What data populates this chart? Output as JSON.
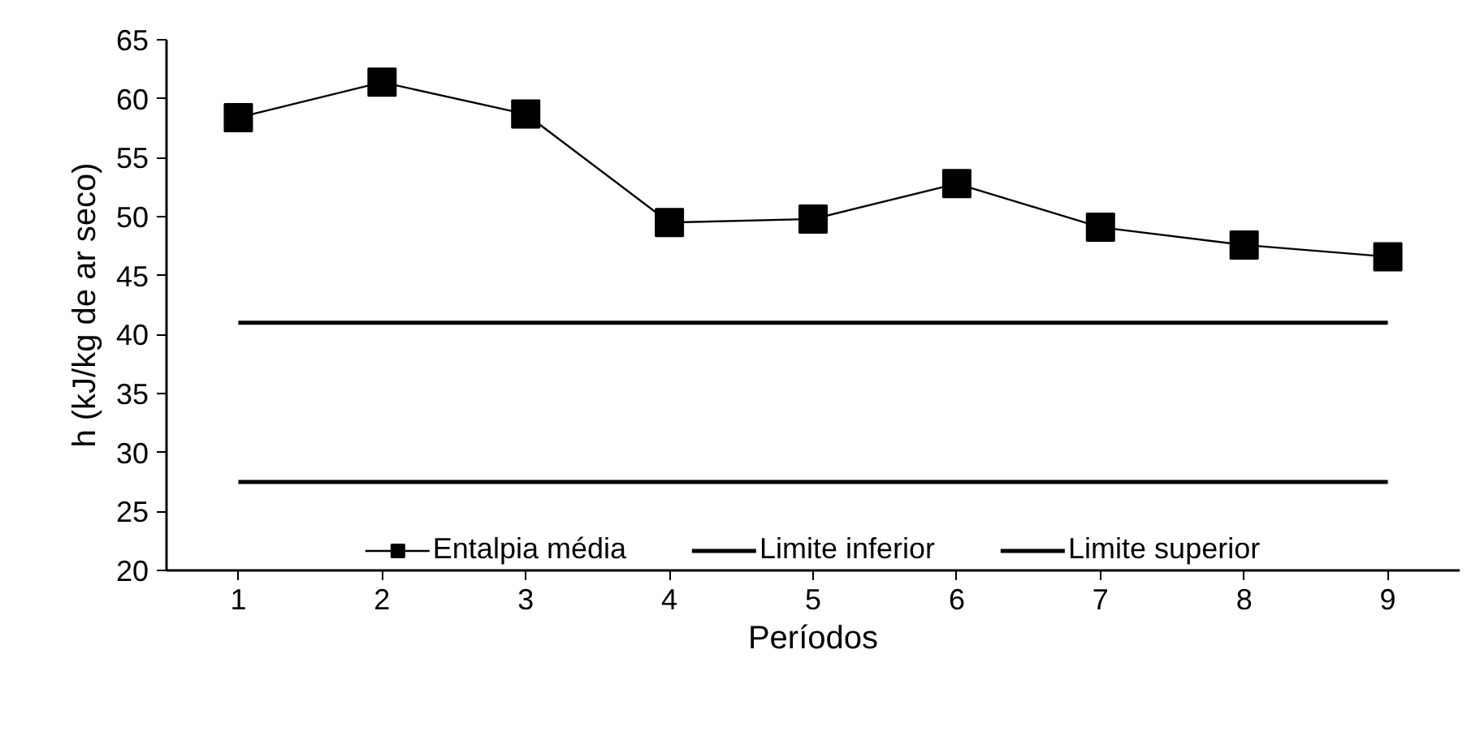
{
  "chart_data": {
    "type": "line",
    "xlabel": "Períodos",
    "ylabel": "h (kJ/kg de ar seco)",
    "x": [
      1,
      2,
      3,
      4,
      5,
      6,
      7,
      8,
      9
    ],
    "xlim": [
      0.5,
      9.5
    ],
    "xticks": [
      1,
      2,
      3,
      4,
      5,
      6,
      7,
      8,
      9
    ],
    "ylim": [
      20,
      65
    ],
    "yticks": [
      20,
      25,
      30,
      35,
      40,
      45,
      50,
      55,
      60,
      65
    ],
    "grid": false,
    "legend": "bottom",
    "series": [
      {
        "name": "Entalpia média",
        "color": "#000000",
        "marker": "square",
        "values": [
          58.4,
          61.4,
          58.7,
          49.5,
          49.8,
          52.8,
          49.1,
          47.6,
          46.6
        ]
      },
      {
        "name": "Limite inferior",
        "color": "#000000",
        "marker": "none",
        "values": [
          27.5,
          27.5,
          27.5,
          27.5,
          27.5,
          27.5,
          27.5,
          27.5,
          27.5
        ]
      },
      {
        "name": "Limite superior",
        "color": "#000000",
        "marker": "none",
        "values": [
          41.0,
          41.0,
          41.0,
          41.0,
          41.0,
          41.0,
          41.0,
          41.0,
          41.0
        ]
      }
    ]
  }
}
